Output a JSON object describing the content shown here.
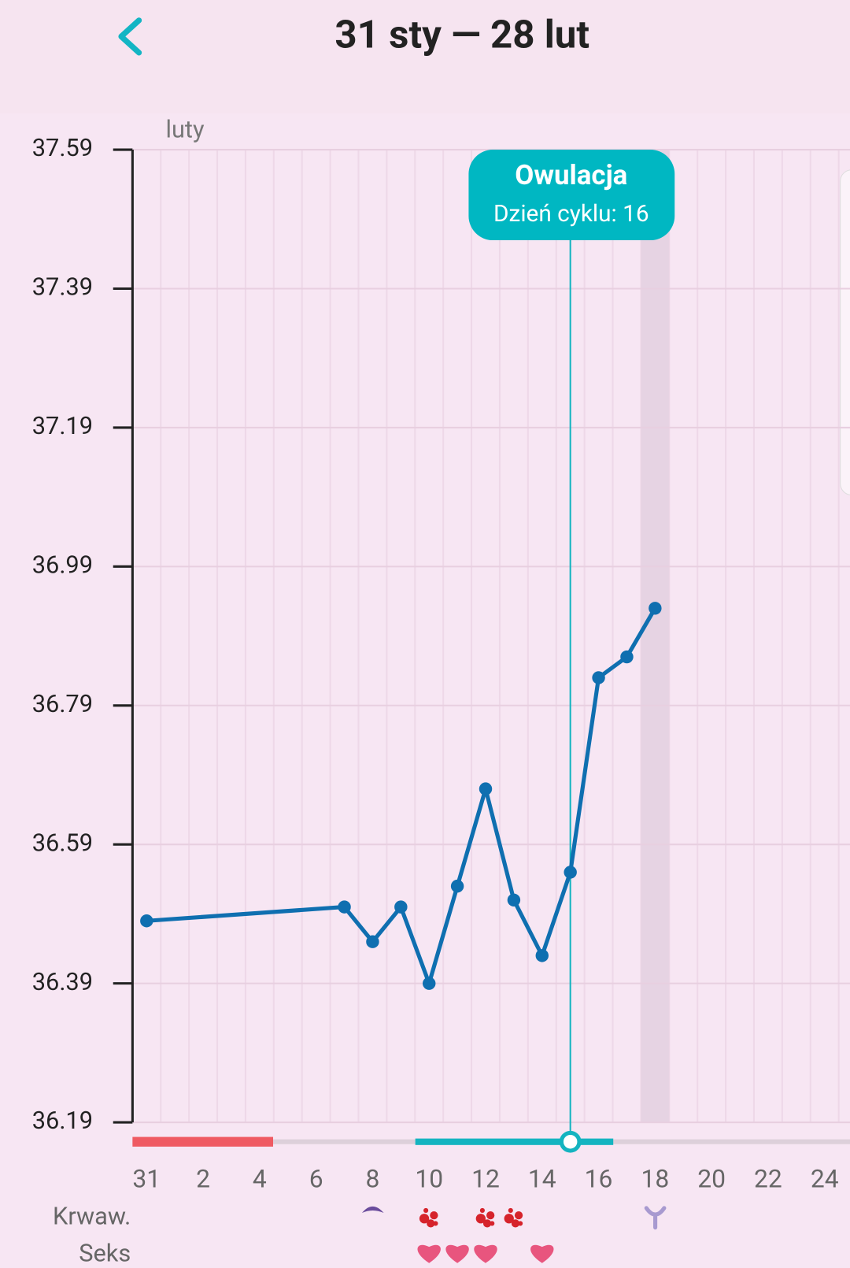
{
  "header": {
    "title": "31 sty — 28 lut"
  },
  "chart_data": {
    "type": "line",
    "month_label": "luty",
    "xlim": [
      -0.5,
      24.9
    ],
    "xticks": [
      {
        "value": 0,
        "label": "31"
      },
      {
        "value": 2,
        "label": "2"
      },
      {
        "value": 4,
        "label": "4"
      },
      {
        "value": 6,
        "label": "6"
      },
      {
        "value": 8,
        "label": "8"
      },
      {
        "value": 10,
        "label": "10"
      },
      {
        "value": 12,
        "label": "12"
      },
      {
        "value": 14,
        "label": "14"
      },
      {
        "value": 16,
        "label": "16"
      },
      {
        "value": 18,
        "label": "18"
      },
      {
        "value": 20,
        "label": "20"
      },
      {
        "value": 22,
        "label": "22"
      },
      {
        "value": 24,
        "label": "24"
      }
    ],
    "ylim": [
      36.19,
      37.59
    ],
    "yticks": [
      37.59,
      37.39,
      37.19,
      36.99,
      36.79,
      36.59,
      36.39,
      36.19
    ],
    "grid": true,
    "series": [
      {
        "color": "#0f6fb0",
        "x": [
          0,
          7,
          8,
          9,
          10,
          11,
          12,
          13,
          14,
          15,
          16,
          17,
          18
        ],
        "values": [
          36.48,
          36.5,
          36.45,
          36.5,
          36.39,
          36.53,
          36.67,
          36.51,
          36.43,
          36.55,
          36.83,
          36.86,
          36.93
        ]
      }
    ],
    "annotation": {
      "title": "Owulacja",
      "subtitle": "Dzień cyklu: 16",
      "x": 15
    },
    "rows": [
      "Krwaw.",
      "Seks"
    ]
  }
}
